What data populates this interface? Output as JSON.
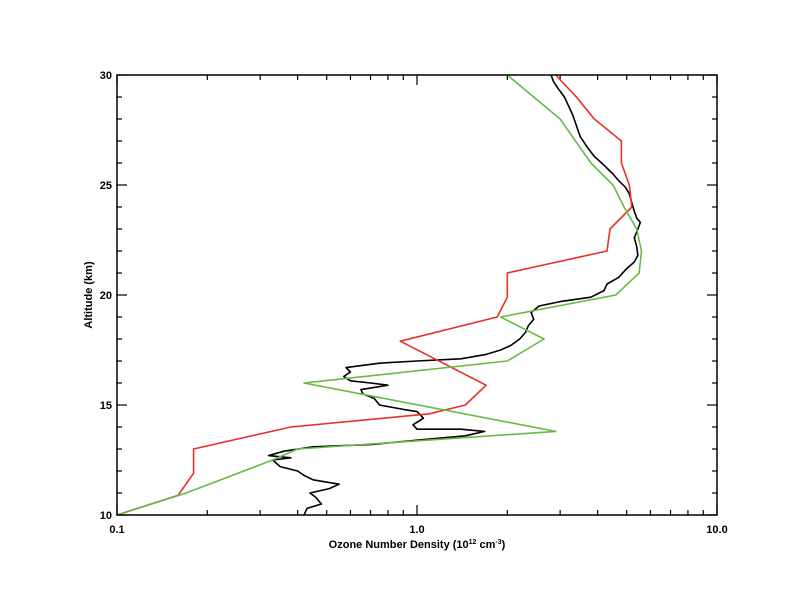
{
  "chart_data": {
    "type": "line",
    "title": "",
    "xlabel": "Ozone Number Density (10",
    "xlabel_exp": "12",
    "xlabel_unit": " cm",
    "xlabel_unit_exp": "-3",
    "xlabel_close": ")",
    "ylabel": "Altitude (km)",
    "x_scale": "log",
    "xlim": [
      0.1,
      10.0
    ],
    "ylim": [
      10,
      30
    ],
    "x_ticks": [
      0.1,
      1.0,
      10.0
    ],
    "x_tick_labels": [
      "0.1",
      "1.0",
      "10.0"
    ],
    "y_ticks": [
      10,
      15,
      20,
      25,
      30
    ],
    "y_tick_labels": [
      "10",
      "15",
      "20",
      "25",
      "30"
    ],
    "grid": false,
    "series": [
      {
        "color": "#000000",
        "points": [
          [
            0.42,
            10.0
          ],
          [
            0.43,
            10.3
          ],
          [
            0.48,
            10.5
          ],
          [
            0.46,
            10.8
          ],
          [
            0.44,
            11.0
          ],
          [
            0.51,
            11.2
          ],
          [
            0.55,
            11.4
          ],
          [
            0.45,
            11.6
          ],
          [
            0.42,
            11.8
          ],
          [
            0.4,
            12.0
          ],
          [
            0.35,
            12.2
          ],
          [
            0.33,
            12.5
          ],
          [
            0.38,
            12.6
          ],
          [
            0.32,
            12.7
          ],
          [
            0.36,
            12.9
          ],
          [
            0.45,
            13.1
          ],
          [
            0.7,
            13.2
          ],
          [
            1.0,
            13.4
          ],
          [
            1.45,
            13.6
          ],
          [
            1.68,
            13.8
          ],
          [
            1.4,
            13.9
          ],
          [
            1.0,
            13.9
          ],
          [
            0.97,
            14.1
          ],
          [
            1.05,
            14.4
          ],
          [
            1.0,
            14.7
          ],
          [
            0.9,
            14.8
          ],
          [
            0.75,
            15.0
          ],
          [
            0.72,
            15.3
          ],
          [
            0.66,
            15.5
          ],
          [
            0.65,
            15.7
          ],
          [
            0.72,
            15.8
          ],
          [
            0.8,
            15.9
          ],
          [
            0.7,
            16.0
          ],
          [
            0.6,
            16.1
          ],
          [
            0.57,
            16.3
          ],
          [
            0.6,
            16.5
          ],
          [
            0.58,
            16.7
          ],
          [
            0.75,
            16.9
          ],
          [
            1.0,
            17.0
          ],
          [
            1.4,
            17.1
          ],
          [
            1.7,
            17.3
          ],
          [
            1.9,
            17.5
          ],
          [
            2.05,
            17.7
          ],
          [
            2.2,
            18.0
          ],
          [
            2.3,
            18.3
          ],
          [
            2.35,
            18.6
          ],
          [
            2.45,
            18.9
          ],
          [
            2.4,
            19.2
          ],
          [
            2.55,
            19.5
          ],
          [
            3.0,
            19.7
          ],
          [
            3.8,
            19.9
          ],
          [
            4.2,
            20.2
          ],
          [
            4.3,
            20.5
          ],
          [
            4.7,
            20.8
          ],
          [
            5.0,
            21.2
          ],
          [
            5.3,
            21.5
          ],
          [
            5.45,
            21.8
          ],
          [
            5.4,
            22.2
          ],
          [
            5.3,
            22.6
          ],
          [
            5.45,
            23.0
          ],
          [
            5.55,
            23.3
          ],
          [
            5.4,
            23.5
          ],
          [
            5.3,
            23.8
          ],
          [
            5.2,
            24.2
          ],
          [
            5.1,
            24.6
          ],
          [
            4.95,
            24.9
          ],
          [
            4.7,
            25.2
          ],
          [
            4.5,
            25.5
          ],
          [
            4.2,
            25.9
          ],
          [
            3.9,
            26.3
          ],
          [
            3.7,
            26.7
          ],
          [
            3.5,
            27.2
          ],
          [
            3.4,
            27.7
          ],
          [
            3.3,
            28.2
          ],
          [
            3.2,
            28.6
          ],
          [
            3.1,
            29.0
          ],
          [
            2.95,
            29.4
          ],
          [
            2.85,
            29.7
          ],
          [
            2.8,
            30.0
          ]
        ]
      },
      {
        "color": "#e8302a",
        "points": [
          [
            0.1,
            10.0
          ],
          [
            0.16,
            10.9
          ],
          [
            0.18,
            11.9
          ],
          [
            0.18,
            13.0
          ],
          [
            0.38,
            14.0
          ],
          [
            1.1,
            14.6
          ],
          [
            1.45,
            15.0
          ],
          [
            1.7,
            15.9
          ],
          [
            0.88,
            17.9
          ],
          [
            1.85,
            19.0
          ],
          [
            2.0,
            19.9
          ],
          [
            2.0,
            21.0
          ],
          [
            4.3,
            22.0
          ],
          [
            4.4,
            23.0
          ],
          [
            5.2,
            24.0
          ],
          [
            5.1,
            25.0
          ],
          [
            4.8,
            26.0
          ],
          [
            4.8,
            27.0
          ],
          [
            3.9,
            28.0
          ],
          [
            3.4,
            29.0
          ],
          [
            2.9,
            30.0
          ]
        ]
      },
      {
        "color": "#66bb44",
        "points": [
          [
            0.1,
            10.0
          ],
          [
            0.17,
            11.0
          ],
          [
            0.33,
            12.5
          ],
          [
            0.4,
            13.0
          ],
          [
            2.9,
            13.8
          ],
          [
            0.42,
            16.0
          ],
          [
            2.0,
            17.0
          ],
          [
            2.65,
            18.0
          ],
          [
            1.9,
            19.0
          ],
          [
            4.6,
            20.0
          ],
          [
            5.5,
            21.0
          ],
          [
            5.6,
            22.0
          ],
          [
            5.4,
            23.0
          ],
          [
            4.9,
            24.0
          ],
          [
            4.5,
            25.0
          ],
          [
            3.8,
            26.0
          ],
          [
            3.0,
            28.0
          ],
          [
            2.0,
            30.0
          ]
        ]
      }
    ]
  }
}
